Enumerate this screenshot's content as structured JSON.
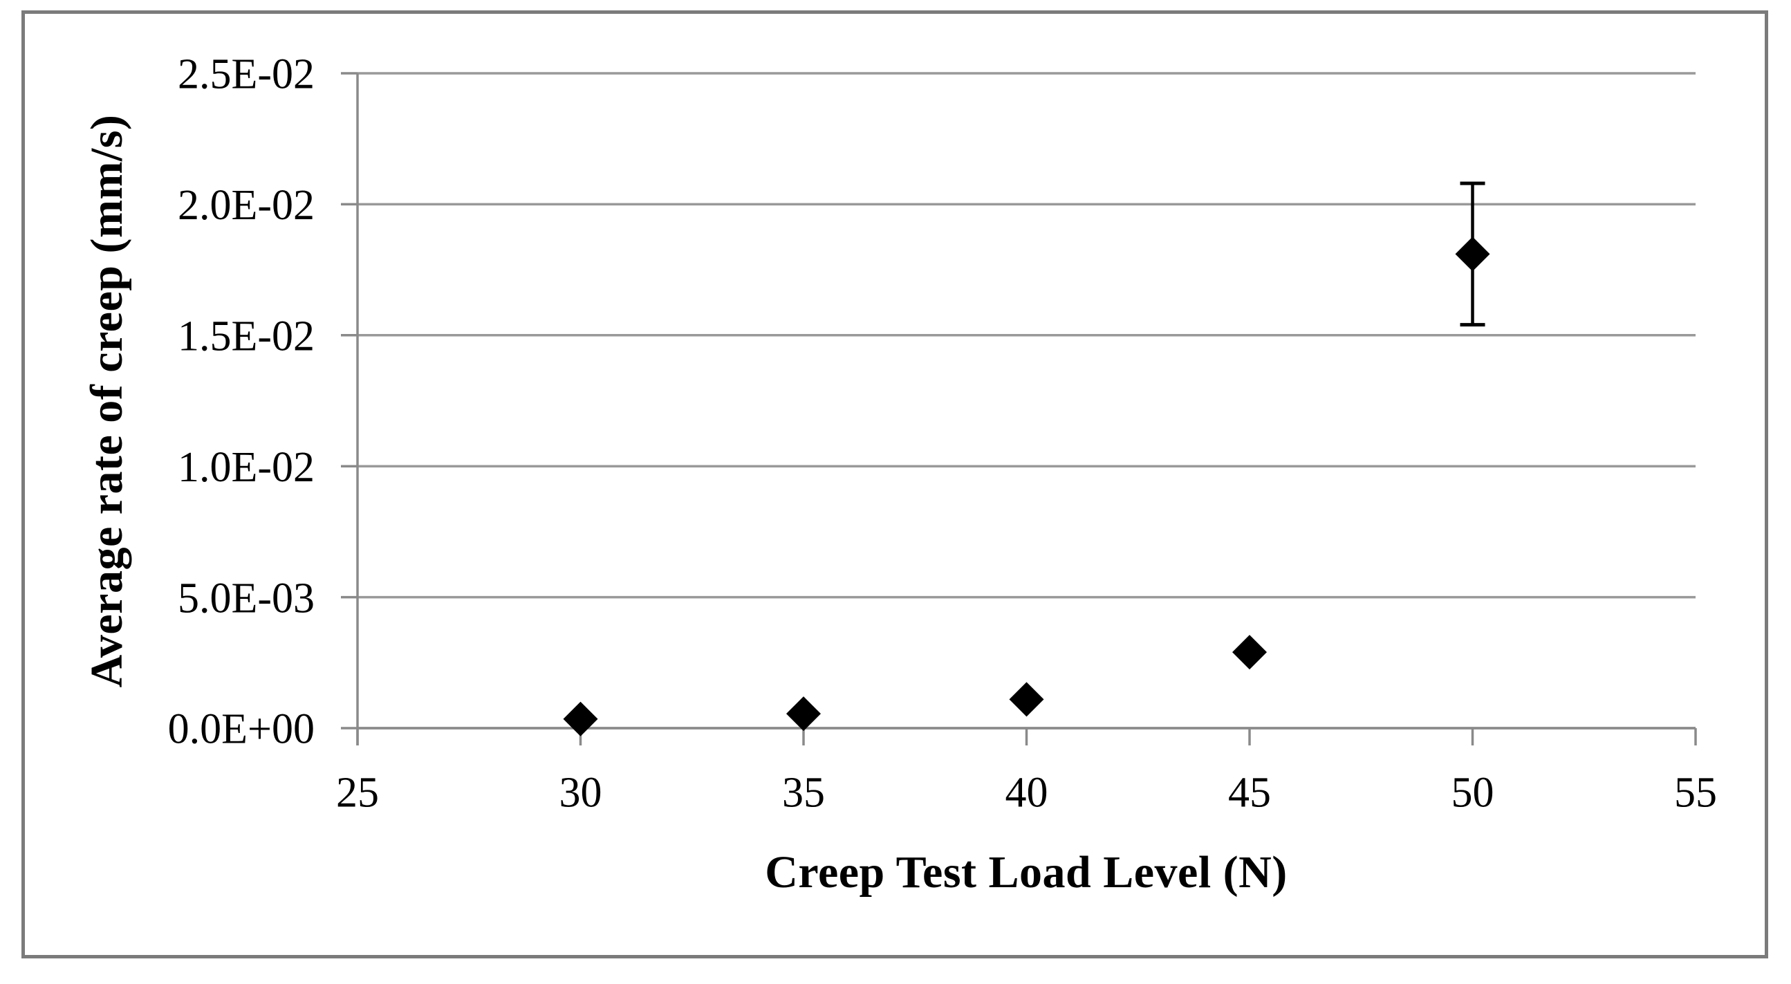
{
  "figure": {
    "background_color": "#ffffff",
    "border_color": "#7b7b7b",
    "gridline_color": "#999999",
    "axis_color": "#8a8a8a",
    "text_color": "#000000"
  },
  "chart_data": {
    "type": "scatter",
    "title": "",
    "xlabel": "Creep Test Load Level (N)",
    "ylabel": "Average rate of creep (mm/s)",
    "xlim": [
      25,
      55
    ],
    "ylim": [
      0,
      0.025
    ],
    "grid": true,
    "legend": false,
    "xticks": [
      25,
      30,
      35,
      40,
      45,
      50,
      55
    ],
    "xtick_labels": [
      "25",
      "30",
      "35",
      "40",
      "45",
      "50",
      "55"
    ],
    "ytick_values": [
      0,
      0.005,
      0.01,
      0.015,
      0.02,
      0.025
    ],
    "ytick_labels": [
      "0.0E+00",
      "5.0E-03",
      "1.0E-02",
      "1.5E-02",
      "2.0E-02",
      "2.5E-02"
    ],
    "series": [
      {
        "name": "average-creep-rate",
        "marker": "diamond",
        "color": "#000000",
        "points": [
          {
            "x": 30,
            "y": 0.00035
          },
          {
            "x": 35,
            "y": 0.00055
          },
          {
            "x": 40,
            "y": 0.0011
          },
          {
            "x": 45,
            "y": 0.0029
          },
          {
            "x": 50,
            "y": 0.0181,
            "error_plus": 0.0027,
            "error_minus": 0.0027
          }
        ]
      }
    ]
  }
}
